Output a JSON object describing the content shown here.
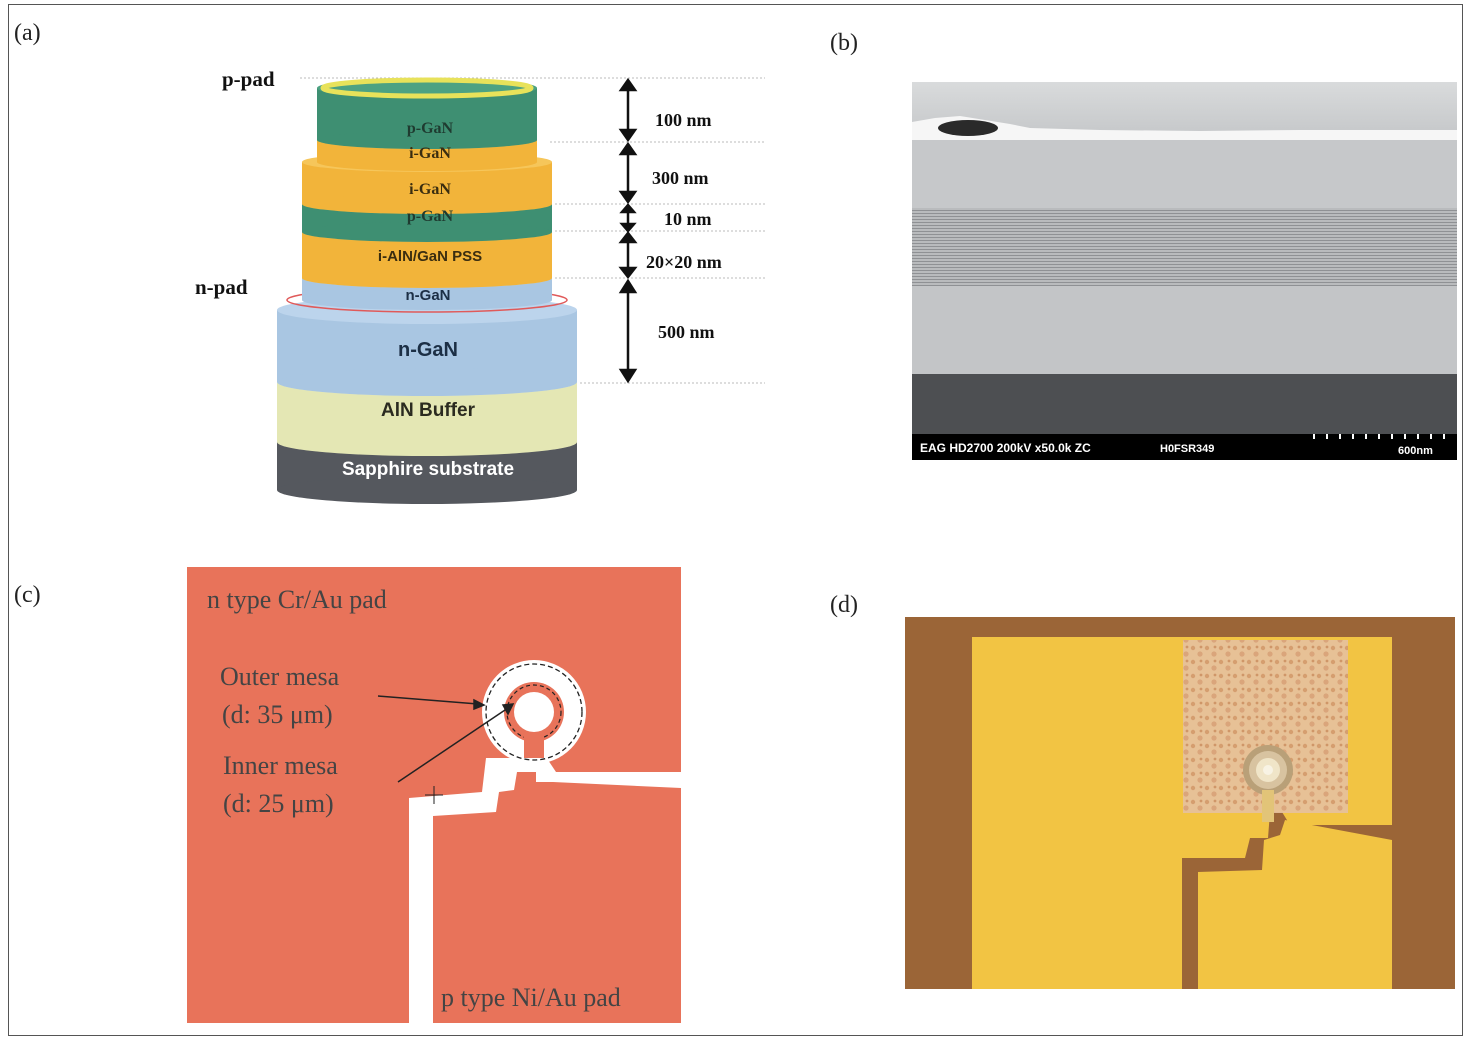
{
  "panels": {
    "a": {
      "label": "(a)",
      "pad_labels": {
        "p_pad": "p-pad",
        "n_pad": "n-pad"
      },
      "layers": {
        "p_gan_top": "p-GaN",
        "i_gan_thin": "i-GaN",
        "i_gan": "i-GaN",
        "p_gan_thin": "p-GaN",
        "pss": "i-AlN/GaN PSS",
        "n_gan_small": "n-GaN",
        "n_gan_large": "n-GaN",
        "aln_buffer": "AlN Buffer",
        "sapphire": "Sapphire substrate"
      },
      "dimensions": {
        "d1": "100 nm",
        "d2": "300 nm",
        "d3": "10 nm",
        "d4": "20×20 nm",
        "d5": "500 nm"
      },
      "colors": {
        "p_gan": "#3e8f72",
        "i_gan": "#f2b43a",
        "n_gan": "#a9c6e2",
        "aln_buffer": "#e4e7b4",
        "sapphire": "#55585e",
        "contact_ring": "#e8e25a"
      }
    },
    "b": {
      "label": "(b)",
      "caption_left": "EAG HD2700  200kV  x50.0k  ZC",
      "caption_id": "H0FSR349",
      "scale_bar": "600nm"
    },
    "c": {
      "label": "(c)",
      "n_pad_label": "n type Cr/Au pad",
      "outer_mesa": "Outer mesa",
      "outer_mesa_d": "(d: 35 μm)",
      "inner_mesa": "Inner mesa",
      "inner_mesa_d": "(d: 25 μm)",
      "p_pad_label": "p type Ni/Au pad",
      "pad_color": "#e8735a"
    },
    "d": {
      "label": "(d)",
      "gold_color": "#f2c443",
      "background_color": "#a0683a"
    }
  }
}
